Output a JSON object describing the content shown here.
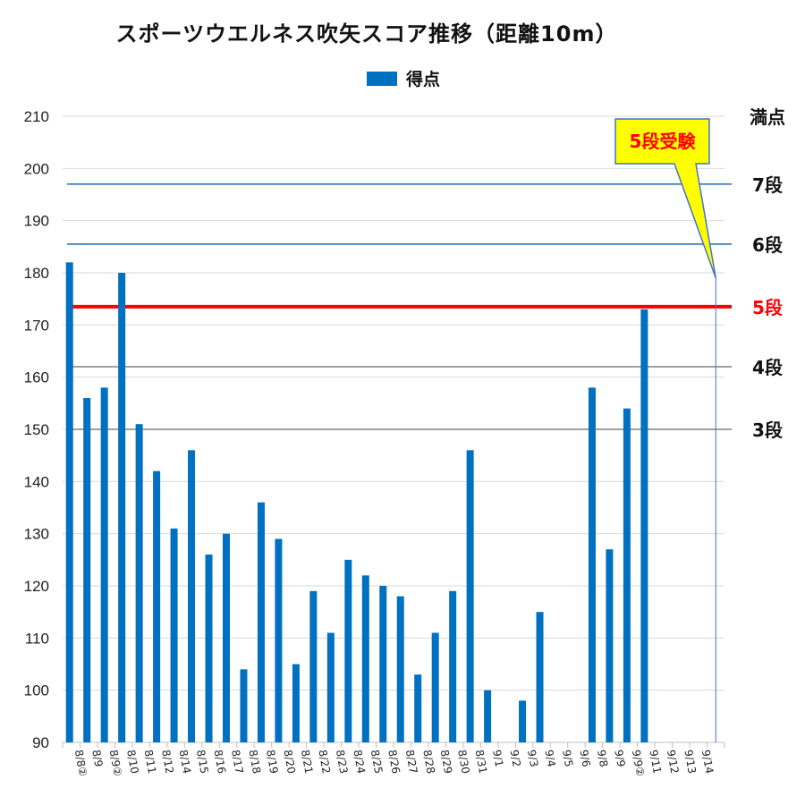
{
  "chart_data": {
    "type": "bar",
    "title": "スポーツウエルネス吹矢スコア推移（距離10m）",
    "legend": [
      {
        "name": "得点",
        "color": "#0070C0"
      }
    ],
    "ylim": [
      90,
      210
    ],
    "yticks": [
      90,
      100,
      110,
      120,
      130,
      140,
      150,
      160,
      170,
      180,
      190,
      200,
      210
    ],
    "categories": [
      "8/8②",
      "8/9",
      "8/9②",
      "8/10",
      "8/11",
      "8/12",
      "8/14",
      "8/15",
      "8/16",
      "8/17",
      "8/18",
      "8/19",
      "8/20",
      "8/21",
      "8/22",
      "8/23",
      "8/24",
      "8/25",
      "8/26",
      "8/27",
      "8/28",
      "8/29",
      "8/30",
      "8/31",
      "9/1",
      "9/2",
      "9/3",
      "9/4",
      "9/5",
      "9/6",
      "9/8",
      "9/9",
      "9/9②",
      "9/11",
      "9/12",
      "9/13",
      "9/14",
      ""
    ],
    "series": [
      {
        "name": "得点",
        "color": "#0070C0",
        "values": [
          182,
          156,
          158,
          180,
          151,
          142,
          131,
          146,
          126,
          130,
          104,
          136,
          129,
          105,
          119,
          111,
          125,
          122,
          120,
          118,
          103,
          111,
          119,
          146,
          100,
          null,
          98,
          115,
          null,
          null,
          158,
          127,
          154,
          173,
          null,
          null,
          null,
          null
        ]
      }
    ],
    "reference_lines": [
      {
        "label": "満点",
        "value": 210,
        "color": "#111111",
        "show_line": false
      },
      {
        "label": "7段",
        "value": 197,
        "color": "#2E75B6",
        "show_line": true
      },
      {
        "label": "6段",
        "value": 185.5,
        "color": "#2E75B6",
        "show_line": true
      },
      {
        "label": "5段",
        "value": 173.5,
        "color": "#FF0000",
        "label_color": "#FF0000",
        "show_line": true,
        "thick": true
      },
      {
        "label": "4段",
        "value": 162,
        "color": "#808080",
        "show_line": true
      },
      {
        "label": "3段",
        "value": 150,
        "color": "#808080",
        "show_line": true
      }
    ],
    "callout": {
      "text": "5段受験",
      "background": "#FFFF00",
      "text_color": "#FF0000",
      "border": "#4472C4"
    },
    "grid": true
  }
}
